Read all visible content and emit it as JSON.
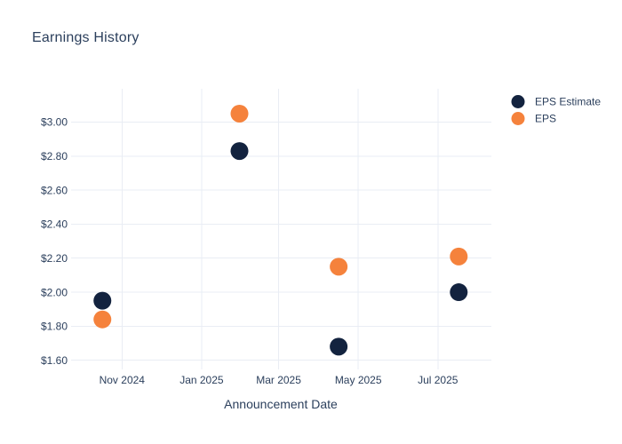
{
  "chart_data": {
    "type": "scatter",
    "title": "Earnings History",
    "xlabel": "Announcement Date",
    "ylabel": "",
    "x_type": "date",
    "x_range": [
      "2024-09-23",
      "2025-08-11"
    ],
    "y_range": [
      1.546,
      3.196
    ],
    "grid": true,
    "legend_position": "top-right-outside",
    "x_ticks": [
      {
        "date": "2024-11-01",
        "label": "Nov 2024"
      },
      {
        "date": "2025-01-01",
        "label": "Jan 2025"
      },
      {
        "date": "2025-03-01",
        "label": "Mar 2025"
      },
      {
        "date": "2025-05-01",
        "label": "May 2025"
      },
      {
        "date": "2025-07-01",
        "label": "Jul 2025"
      }
    ],
    "y_ticks": [
      {
        "value": 3.0,
        "label": "$3.00"
      },
      {
        "value": 2.8,
        "label": "$2.80"
      },
      {
        "value": 2.6,
        "label": "$2.60"
      },
      {
        "value": 2.4,
        "label": "$2.40"
      },
      {
        "value": 2.2,
        "label": "$2.20"
      },
      {
        "value": 2.0,
        "label": "$2.00"
      },
      {
        "value": 1.8,
        "label": "$1.80"
      },
      {
        "value": 1.6,
        "label": "$1.60"
      }
    ],
    "x": [
      "2024-10-17",
      "2025-01-30",
      "2025-04-16",
      "2025-07-17"
    ],
    "series": [
      {
        "name": "EPS Estimate",
        "color": "#13233f",
        "values": [
          1.95,
          2.83,
          1.68,
          2.0
        ]
      },
      {
        "name": "EPS",
        "color": "#f5823c",
        "values": [
          1.84,
          3.05,
          2.15,
          2.21
        ]
      }
    ],
    "colors": {
      "background": "#ffffff",
      "grid": "#e9edf4",
      "text": "#2b3f5c"
    },
    "marker_diameter_px": 20
  }
}
